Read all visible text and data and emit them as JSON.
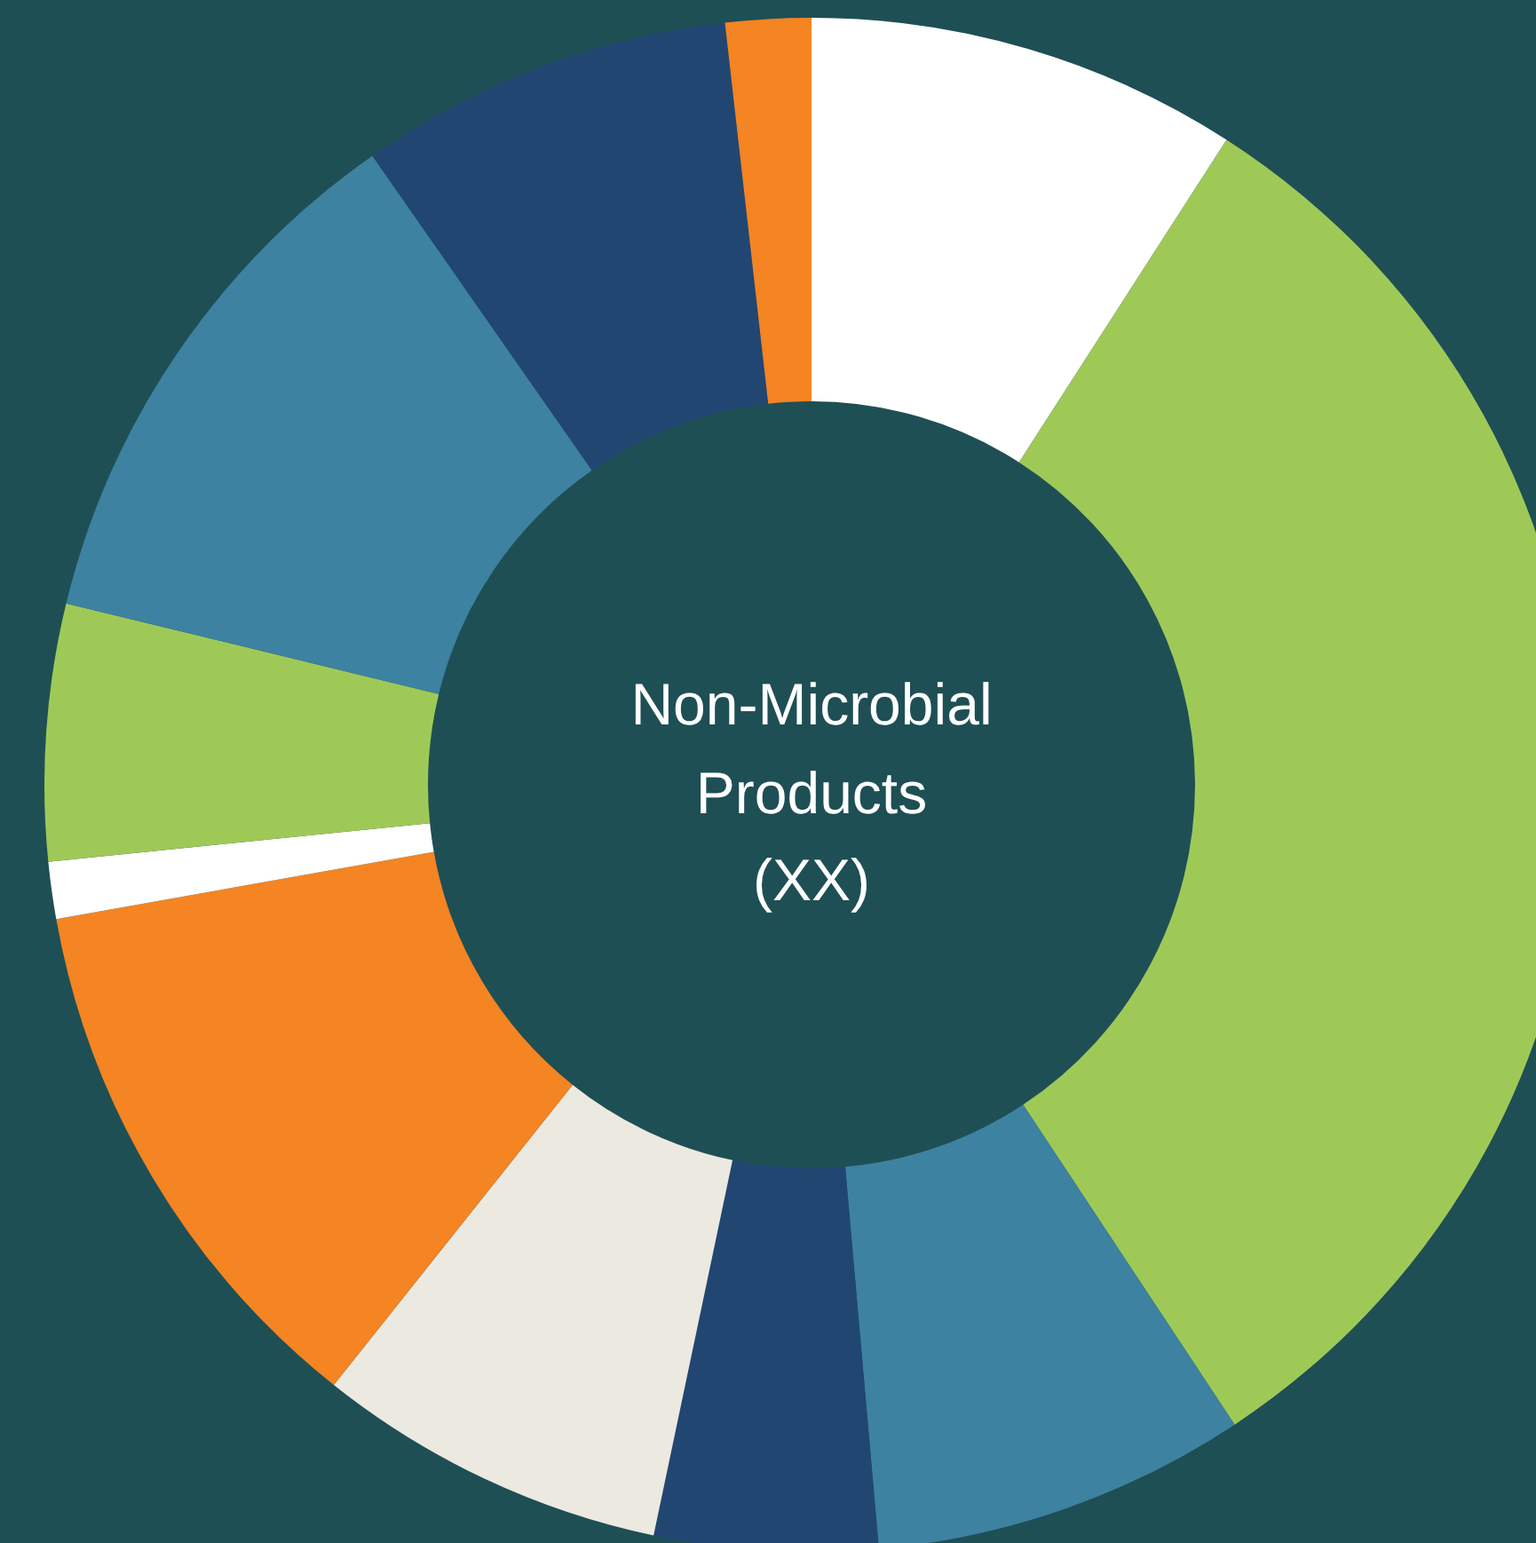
{
  "chart_data": {
    "type": "donut",
    "title": "Non-Microbial\nProducts\n(XX)",
    "categories": [
      null,
      null,
      null,
      null,
      null,
      null,
      null,
      null,
      null,
      null,
      null
    ],
    "values": [
      9.1,
      31.6,
      7.9,
      4.7,
      7.4,
      11.5,
      1.2,
      5.4,
      11.5,
      7.9,
      1.8
    ],
    "colors": [
      "#ffffff",
      "#9fc957",
      "#3d82a0",
      "#214672",
      "#ece9e0",
      "#f58422",
      "#ffffff",
      "#9fc957",
      "#3d82a0",
      "#214672",
      "#f58422"
    ],
    "legend": false
  }
}
